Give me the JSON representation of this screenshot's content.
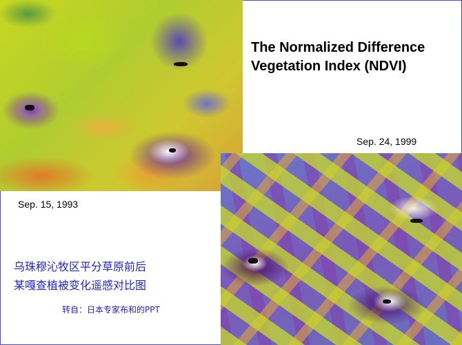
{
  "slide": {
    "title_line1": "The Normalized Difference",
    "title_line2": "Vegetation Index (NDVI)",
    "date_before": "Sep. 15, 1993",
    "date_after": "Sep. 24, 1999",
    "caption_line1": "乌珠穆沁牧区平分草原前后",
    "caption_line2": "某嘎查植被变化遥感对比图",
    "source": "转自：日本专家布和的PPT",
    "border_color": "#4a4ae0",
    "text_color": "#2222dd"
  }
}
